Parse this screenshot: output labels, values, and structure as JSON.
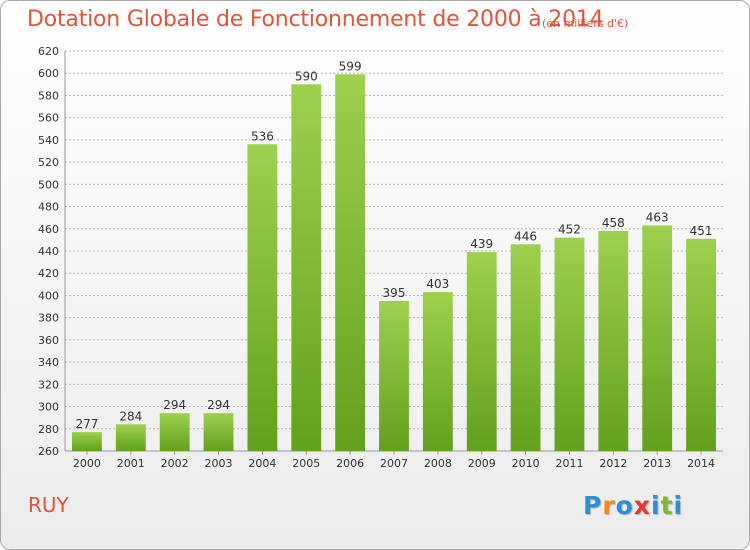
{
  "title": "Dotation Globale de Fonctionnement de 2000 à 2014",
  "subtitle": "(en milliers d'€)",
  "commune": "RUY",
  "logo": {
    "text": "Proxiti",
    "letters": [
      {
        "ch": "P",
        "color": "#2b8fd4"
      },
      {
        "ch": "r",
        "color": "#f08c1e"
      },
      {
        "ch": "o",
        "color": "#2b8fd4"
      },
      {
        "ch": "x",
        "color": "#e53935"
      },
      {
        "ch": "i",
        "color": "#2b8fd4"
      },
      {
        "ch": "t",
        "color": "#7cb82f"
      },
      {
        "ch": "i",
        "color": "#2b8fd4"
      }
    ]
  },
  "colors": {
    "title": "#e2543b",
    "bar_light": "#9dd04e",
    "bar_dark": "#62a11d",
    "grid": "#b9b9b9"
  },
  "chart_data": {
    "type": "bar",
    "categories": [
      "2000",
      "2001",
      "2002",
      "2003",
      "2004",
      "2005",
      "2006",
      "2007",
      "2008",
      "2009",
      "2010",
      "2011",
      "2012",
      "2013",
      "2014"
    ],
    "values": [
      277,
      284,
      294,
      294,
      536,
      590,
      599,
      395,
      403,
      439,
      446,
      452,
      458,
      463,
      451
    ],
    "ylim": [
      260,
      620
    ],
    "yticks": [
      260,
      280,
      300,
      320,
      340,
      360,
      380,
      400,
      420,
      440,
      460,
      480,
      500,
      520,
      540,
      560,
      580,
      600,
      620
    ],
    "grid": true,
    "title": "Dotation Globale de Fonctionnement de 2000 à 2014",
    "subtitle": "(en milliers d'€)",
    "xlabel": "",
    "ylabel": ""
  }
}
